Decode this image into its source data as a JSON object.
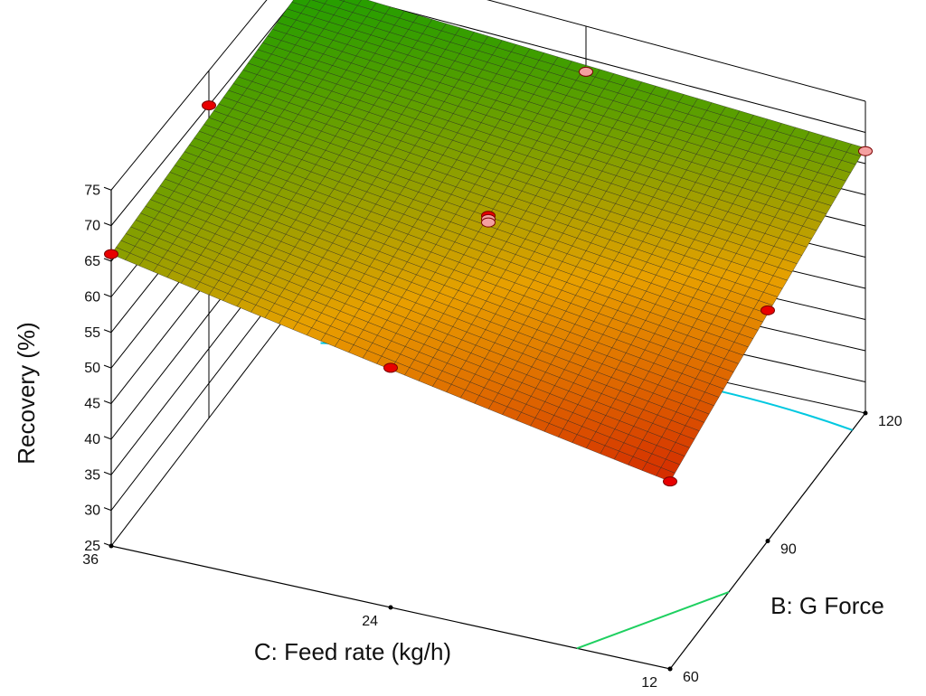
{
  "chart_data": {
    "type": "surface",
    "title": "",
    "zlabel": "Recovery (%)",
    "xlabel": "C: Feed rate (kg/h)",
    "ylabel": "B: G Force",
    "zlim": [
      25,
      75
    ],
    "z_ticks": [
      "25",
      "30",
      "35",
      "40",
      "45",
      "50",
      "55",
      "60",
      "65",
      "70",
      "75"
    ],
    "x_ticks": [
      "12",
      "24",
      "36"
    ],
    "y_ticks": [
      "60",
      "90",
      "120"
    ],
    "grid": true,
    "colormap": [
      "#d42a00",
      "#e8a000",
      "#1f9e00"
    ],
    "surface_corners": [
      {
        "feed_rate": 36,
        "g_force": 60,
        "recovery": 66.0
      },
      {
        "feed_rate": 36,
        "g_force": 120,
        "recovery": 70.5
      },
      {
        "feed_rate": 12,
        "g_force": 120,
        "recovery": 67.5
      },
      {
        "feed_rate": 12,
        "g_force": 60,
        "recovery": 53.5
      }
    ],
    "design_points": [
      {
        "feed_rate": 36,
        "g_force": 60,
        "recovery": 66.0
      },
      {
        "feed_rate": 36,
        "g_force": 90,
        "recovery": 70.0
      },
      {
        "feed_rate": 36,
        "g_force": 120,
        "recovery": 71.5
      },
      {
        "feed_rate": 24,
        "g_force": 120,
        "recovery": 68.0
      },
      {
        "feed_rate": 24,
        "g_force": 60,
        "recovery": 60.0
      },
      {
        "feed_rate": 12,
        "g_force": 120,
        "recovery": 67.0
      },
      {
        "feed_rate": 12,
        "g_force": 90,
        "recovery": 61.0
      },
      {
        "feed_rate": 12,
        "g_force": 60,
        "recovery": 53.5
      },
      {
        "feed_rate": 24,
        "g_force": 90,
        "recovery": 64.5
      },
      {
        "feed_rate": 24,
        "g_force": 90,
        "recovery": 64.0
      },
      {
        "feed_rate": 24,
        "g_force": 90,
        "recovery": 63.5
      }
    ],
    "contour_colors": [
      "#00c8e0",
      "#1ed060"
    ]
  }
}
